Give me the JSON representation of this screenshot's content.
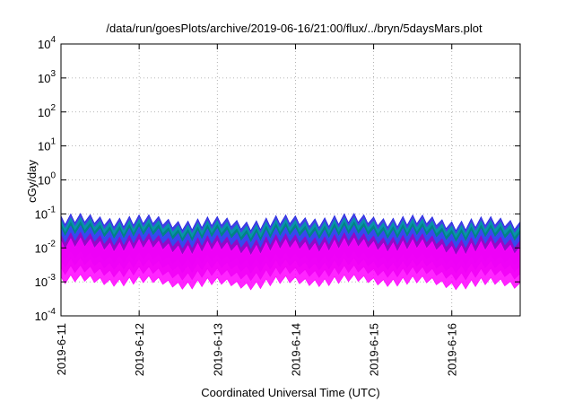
{
  "chart_data": {
    "type": "line",
    "title": "/data/run/goesPlots/archive/2019-06-16/21:00/flux/../bryn/5daysMars.plot",
    "xlabel": "Coordinated Universal Time (UTC)",
    "ylabel": "cGy/day",
    "yscale": "log",
    "ylim": [
      0.0001,
      10000
    ],
    "xlim": [
      "2019-06-11 00:00",
      "2019-06-16 21:00"
    ],
    "x_ticks": [
      "2019-6-11",
      "2019-6-12",
      "2019-6-13",
      "2019-6-14",
      "2019-6-15",
      "2019-6-16"
    ],
    "y_ticks": [
      {
        "base": "10",
        "exp": "-4"
      },
      {
        "base": "10",
        "exp": "-3"
      },
      {
        "base": "10",
        "exp": "-2"
      },
      {
        "base": "10",
        "exp": "-1"
      },
      {
        "base": "10",
        "exp": "0"
      },
      {
        "base": "10",
        "exp": "1"
      },
      {
        "base": "10",
        "exp": "2"
      },
      {
        "base": "10",
        "exp": "3"
      },
      {
        "base": "10",
        "exp": "4"
      }
    ],
    "grid": true,
    "legend": "none",
    "oscillation_period_hours": 3,
    "series": [
      {
        "color": "#ff00ff",
        "peak": 0.015,
        "trough": 0.0008
      },
      {
        "color": "#a000c0",
        "peak": 0.022,
        "trough": 0.0015
      },
      {
        "color": "#4040ff",
        "peak": 0.035,
        "trough": 0.0025
      },
      {
        "color": "#008080",
        "peak": 0.045,
        "trough": 0.004
      },
      {
        "color": "#00a0a0",
        "peak": 0.06,
        "trough": 0.005
      },
      {
        "color": "#2020e0",
        "peak": 0.08,
        "trough": 0.006
      }
    ]
  }
}
